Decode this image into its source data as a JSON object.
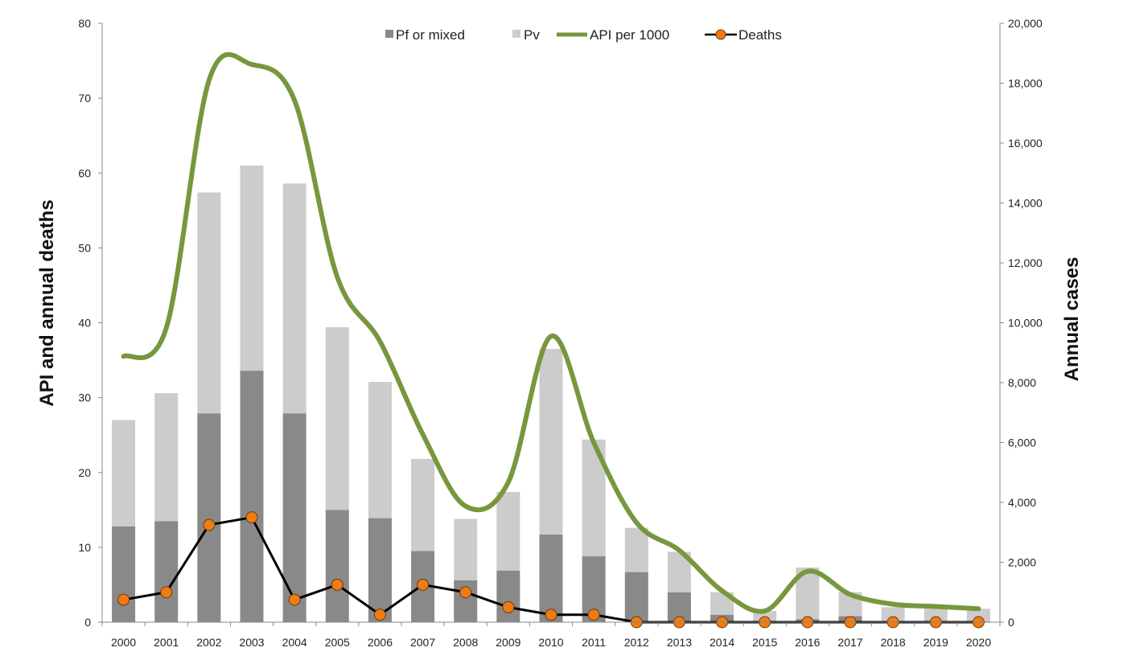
{
  "chart_data": {
    "type": "bar+line",
    "categories": [
      "2000",
      "2001",
      "2002",
      "2003",
      "2004",
      "2005",
      "2006",
      "2007",
      "2008",
      "2009",
      "2010",
      "2011",
      "2012",
      "2013",
      "2014",
      "2015",
      "2016",
      "2017",
      "2018",
      "2019",
      "2020"
    ],
    "ylabel_left": "API and annual deaths",
    "ylabel_right": "Annual cases",
    "ylim_left": [
      0,
      80
    ],
    "ylim_right": [
      0,
      20000
    ],
    "yticks_left": [
      "0",
      "10",
      "20",
      "30",
      "40",
      "50",
      "60",
      "70",
      "80"
    ],
    "yticks_right": [
      "0",
      "2,000",
      "4,000",
      "6,000",
      "8,000",
      "10,000",
      "12,000",
      "14,000",
      "16,000",
      "18,000",
      "20,000"
    ],
    "legend_position": "top",
    "grid": false,
    "series": [
      {
        "name": "Pf or mixed",
        "type": "stacked-bar",
        "axis": "right",
        "color": "#898989",
        "values": [
          3200,
          3375,
          6975,
          8400,
          6975,
          3750,
          3475,
          2375,
          1400,
          1725,
          2925,
          2200,
          1675,
          1000,
          250,
          25,
          100,
          200,
          25,
          25,
          25
        ]
      },
      {
        "name": "Pv",
        "type": "stacked-bar",
        "axis": "right",
        "color": "#cccccc",
        "values": [
          3550,
          4275,
          7375,
          6850,
          7675,
          6100,
          4550,
          3075,
          2050,
          2625,
          6200,
          3900,
          1475,
          1350,
          750,
          350,
          1725,
          800,
          475,
          475,
          425
        ]
      },
      {
        "name": "API per 1000",
        "type": "smooth-line",
        "axis": "left",
        "color": "#77973d",
        "values": [
          35.5,
          39.3,
          72.4,
          74.5,
          69.7,
          46.1,
          37.5,
          25.1,
          15.5,
          18.7,
          38.2,
          24.0,
          13.3,
          9.6,
          4.2,
          1.5,
          6.8,
          3.7,
          2.4,
          2.1,
          1.8
        ]
      },
      {
        "name": "Deaths",
        "type": "line-markers",
        "axis": "left",
        "color": "#000000",
        "marker_color": "#f07b12",
        "values": [
          3,
          4,
          13,
          14,
          3,
          5,
          1,
          5,
          4,
          2,
          1,
          1,
          0,
          0,
          0,
          0,
          0,
          0,
          0,
          0,
          0
        ]
      }
    ]
  }
}
